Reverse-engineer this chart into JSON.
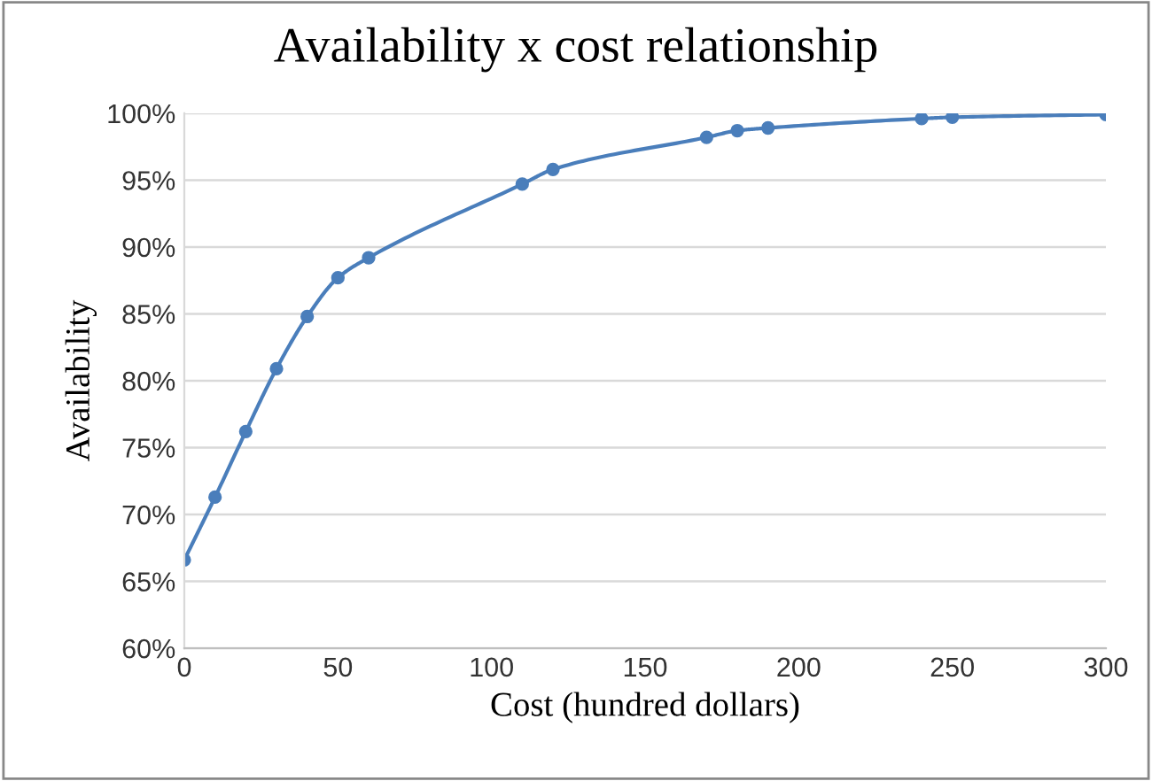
{
  "chart_data": {
    "type": "line",
    "title": "Availability x cost relationship",
    "xlabel": "Cost (hundred dollars)",
    "ylabel": "Availability",
    "x": [
      0,
      10,
      20,
      30,
      40,
      50,
      60,
      110,
      120,
      170,
      180,
      190,
      240,
      250,
      300
    ],
    "series": [
      {
        "color": "#4a7ebb",
        "values": [
          66.6,
          71.3,
          76.2,
          80.9,
          84.8,
          87.7,
          89.2,
          94.7,
          95.8,
          98.2,
          98.7,
          98.9,
          99.6,
          99.7,
          99.9
        ]
      }
    ],
    "xlim": [
      0,
      300
    ],
    "xticks": [
      0,
      50,
      100,
      150,
      200,
      250,
      300
    ],
    "ylim": [
      60,
      100
    ],
    "yticks": [
      {
        "value": 60,
        "label": "60%"
      },
      {
        "value": 65,
        "label": "65%"
      },
      {
        "value": 70,
        "label": "70%"
      },
      {
        "value": 75,
        "label": "75%"
      },
      {
        "value": 80,
        "label": "80%"
      },
      {
        "value": 85,
        "label": "85%"
      },
      {
        "value": 90,
        "label": "90%"
      },
      {
        "value": 95,
        "label": "95%"
      },
      {
        "value": 100,
        "label": "100%"
      }
    ],
    "grid": "y",
    "marker": "circle",
    "line_style": "solid"
  }
}
